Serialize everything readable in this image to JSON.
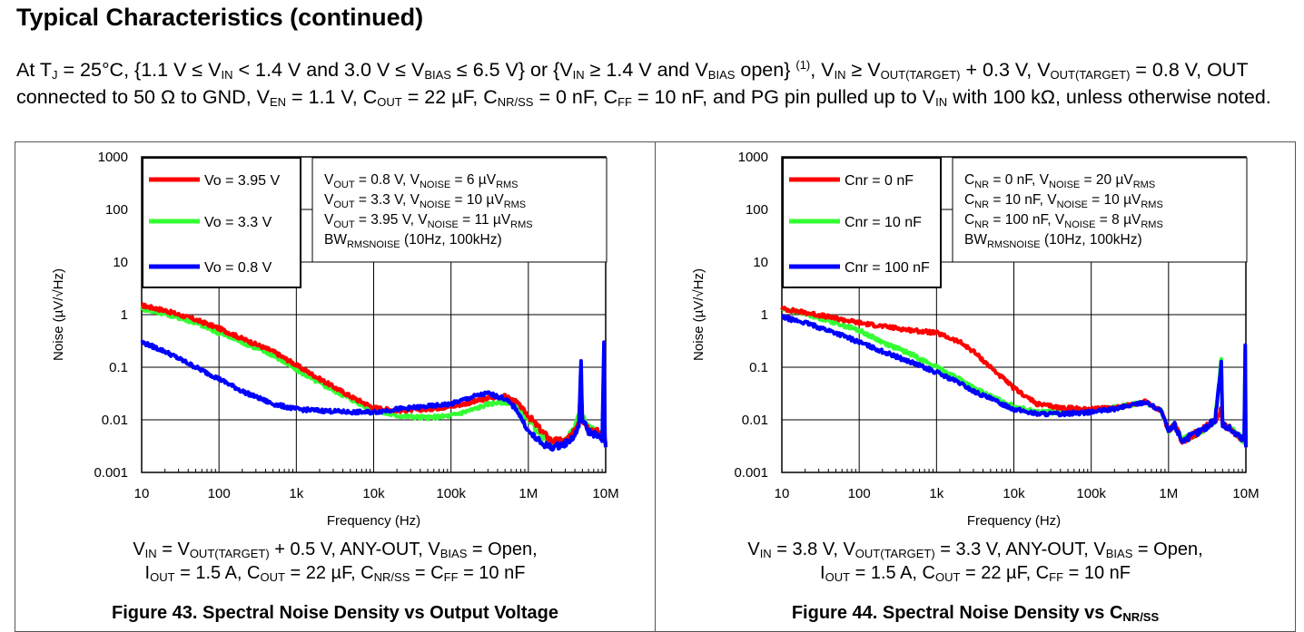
{
  "page": {
    "title": "Typical Characteristics (continued)",
    "conditions": {
      "p0": "At T",
      "s0": "J",
      "p1": " = 25°C, {1.1 V ≤ V",
      "s1": "IN",
      "p2": " < 1.4 V and 3.0 V ≤ V",
      "s2": "BIAS",
      "p3": " ≤ 6.5 V} or {V",
      "s3": "IN",
      "p4": " ≥ 1.4 V and V",
      "s4": "BIAS",
      "p5": " open} ",
      "sup5": "(1)",
      "p6": ", V",
      "s6": "IN",
      "p7": " ≥ V",
      "s7": "OUT(TARGET)",
      "p8": " + 0.3 V, V",
      "s8": "OUT(TARGET)",
      "p9": " = 0.8 V, OUT connected to 50 Ω to GND, V",
      "s9": "EN",
      "p10": " = 1.1 V, C",
      "s10": "OUT",
      "p11": " = 22 µF, C",
      "s11": "NR/SS",
      "p12": " = 0 nF, C",
      "s12": "FF",
      "p13": " = 10 nF, and PG pin pulled up to V",
      "s13": "IN",
      "p14": " with 100 kΩ, unless otherwise noted."
    }
  },
  "colors": {
    "red": "#ff0000",
    "green": "#33ff33",
    "blue": "#0000ff",
    "grid": "#000000"
  },
  "figures": [
    {
      "caption": {
        "l1a": "V",
        "l1s1": "IN",
        "l1b": " = V",
        "l1s2": "OUT(TARGET)",
        "l1c": " + 0.5 V, ANY-OUT, V",
        "l1s3": "BIAS",
        "l1d": " = Open,",
        "l2a": "I",
        "l2s1": "OUT",
        "l2b": " = 1.5 A, C",
        "l2s2": "OUT",
        "l2c": " = 22 µF, C",
        "l2s3": "NR/SS",
        "l2d": " = C",
        "l2s4": "FF",
        "l2e": " = 10 nF"
      },
      "fig_title": {
        "a": "Figure 43. Spectral Noise Density vs Output Voltage",
        "s": "",
        "b": ""
      },
      "legend": [
        "Vo = 3.95 V",
        "Vo = 3.3 V",
        "Vo = 0.8 V"
      ],
      "annotation": [
        {
          "a": "V",
          "s1": "OUT",
          "b": " = 0.8 V, V",
          "s2": "NOISE",
          "c": " = 6 µV",
          "s3": "RMS"
        },
        {
          "a": "V",
          "s1": "OUT",
          "b": " = 3.3 V, V",
          "s2": "NOISE",
          "c": " = 10 µV",
          "s3": "RMS"
        },
        {
          "a": "V",
          "s1": "OUT",
          "b": " = 3.95 V, V",
          "s2": "NOISE",
          "c": " = 11 µV",
          "s3": "RMS"
        },
        {
          "a": "BW",
          "s1": "RMSNOISE",
          "b": " (10Hz, 100kHz)",
          "s2": "",
          "c": "",
          "s3": ""
        }
      ]
    },
    {
      "caption": {
        "l1a": "V",
        "l1s1": "IN",
        "l1b": " = 3.8 V, V",
        "l1s2": "OUT(TARGET)",
        "l1c": " = 3.3 V, ANY-OUT, V",
        "l1s3": "BIAS",
        "l1d": " = Open,",
        "l2a": "I",
        "l2s1": "OUT",
        "l2b": " = 1.5 A, C",
        "l2s2": "OUT",
        "l2c": " = 22 µF, C",
        "l2s3": "FF",
        "l2d": " = 10 nF",
        "l2s4": "",
        "l2e": ""
      },
      "fig_title": {
        "a": "Figure 44. Spectral Noise Density vs C",
        "s": "NR/SS",
        "b": ""
      },
      "legend": [
        "Cnr = 0 nF",
        "Cnr = 10 nF",
        "Cnr = 100 nF"
      ],
      "annotation": [
        {
          "a": "C",
          "s1": "NR",
          "b": " = 0 nF, V",
          "s2": "NOISE",
          "c": " = 20 µV",
          "s3": "RMS"
        },
        {
          "a": "C",
          "s1": "NR",
          "b": " = 10 nF, V",
          "s2": "NOISE",
          "c": " = 10 µV",
          "s3": "RMS"
        },
        {
          "a": "C",
          "s1": "NR",
          "b": " = 100 nF, V",
          "s2": "NOISE",
          "c": " = 8 µV",
          "s3": "RMS"
        },
        {
          "a": "BW",
          "s1": "RMSNOISE",
          "b": " (10Hz, 100kHz)",
          "s2": "",
          "c": "",
          "s3": ""
        }
      ]
    }
  ],
  "chart_data": [
    {
      "type": "line",
      "xlabel": "Frequency (Hz)",
      "ylabel": "Noise (µV/√Hz)",
      "xscale": "log",
      "yscale": "log",
      "xlim": [
        10,
        10000000
      ],
      "ylim": [
        0.001,
        1000
      ],
      "xticks": [
        10,
        100,
        1000,
        10000,
        100000,
        1000000,
        10000000
      ],
      "xtick_labels": [
        "10",
        "100",
        "1k",
        "10k",
        "100k",
        "1M",
        "10M"
      ],
      "yticks": [
        0.001,
        0.01,
        0.1,
        1,
        10,
        100,
        1000
      ],
      "ytick_labels": [
        "0.001",
        "0.01",
        "0.1",
        "1",
        "10",
        "100",
        "1000"
      ],
      "grid": true,
      "legend_position": "top-left",
      "series": [
        {
          "name": "Vo = 3.95 V",
          "color": "red",
          "x": [
            10,
            20,
            50,
            100,
            200,
            500,
            1000,
            2000,
            5000,
            10000,
            20000,
            50000,
            100000,
            200000,
            300000,
            500000,
            700000,
            1000000,
            1500000,
            2000000,
            3000000,
            4000000,
            4500000,
            4800000,
            5000000,
            6000000,
            8000000,
            9000000,
            9500000,
            9800000,
            10000000
          ],
          "y": [
            1.5,
            1.2,
            0.8,
            0.55,
            0.35,
            0.2,
            0.11,
            0.06,
            0.028,
            0.017,
            0.015,
            0.016,
            0.018,
            0.022,
            0.026,
            0.028,
            0.022,
            0.012,
            0.006,
            0.004,
            0.004,
            0.006,
            0.01,
            0.05,
            0.01,
            0.007,
            0.006,
            0.005,
            0.015,
            0.005,
            0.003
          ]
        },
        {
          "name": "Vo = 3.3 V",
          "color": "green",
          "x": [
            10,
            20,
            50,
            100,
            200,
            500,
            1000,
            2000,
            5000,
            10000,
            20000,
            50000,
            100000,
            200000,
            300000,
            500000,
            700000,
            1000000,
            1500000,
            2000000,
            3000000,
            4000000,
            4500000,
            4800000,
            5000000,
            6000000,
            8000000,
            9000000,
            9500000,
            9800000,
            10000000
          ],
          "y": [
            1.3,
            1.05,
            0.7,
            0.45,
            0.3,
            0.17,
            0.09,
            0.05,
            0.025,
            0.015,
            0.012,
            0.011,
            0.012,
            0.016,
            0.02,
            0.022,
            0.018,
            0.01,
            0.005,
            0.0035,
            0.004,
            0.007,
            0.012,
            0.04,
            0.012,
            0.007,
            0.006,
            0.005,
            0.012,
            0.004,
            0.003
          ]
        },
        {
          "name": "Vo = 0.8 V",
          "color": "blue",
          "x": [
            10,
            20,
            50,
            100,
            200,
            500,
            1000,
            2000,
            5000,
            10000,
            20000,
            50000,
            100000,
            200000,
            300000,
            500000,
            700000,
            1000000,
            1500000,
            2000000,
            3000000,
            4000000,
            4500000,
            4800000,
            5000000,
            6000000,
            8000000,
            9000000,
            9500000,
            9800000,
            10000000
          ],
          "y": [
            0.3,
            0.2,
            0.1,
            0.06,
            0.035,
            0.02,
            0.016,
            0.015,
            0.014,
            0.014,
            0.016,
            0.018,
            0.02,
            0.028,
            0.032,
            0.025,
            0.016,
            0.006,
            0.0035,
            0.003,
            0.0035,
            0.005,
            0.008,
            0.12,
            0.01,
            0.006,
            0.005,
            0.004,
            0.3,
            0.004,
            0.003
          ]
        }
      ]
    },
    {
      "type": "line",
      "xlabel": "Frequency (Hz)",
      "ylabel": "Noise (µV/√Hz)",
      "xscale": "log",
      "yscale": "log",
      "xlim": [
        10,
        10000000
      ],
      "ylim": [
        0.001,
        1000
      ],
      "xticks": [
        10,
        100,
        1000,
        10000,
        100000,
        1000000,
        10000000
      ],
      "xtick_labels": [
        "10",
        "100",
        "1k",
        "10k",
        "100k",
        "1M",
        "10M"
      ],
      "yticks": [
        0.001,
        0.01,
        0.1,
        1,
        10,
        100,
        1000
      ],
      "ytick_labels": [
        "0.001",
        "0.01",
        "0.1",
        "1",
        "10",
        "100",
        "1000"
      ],
      "grid": true,
      "legend_position": "top-left",
      "series": [
        {
          "name": "Cnr = 0 nF",
          "color": "red",
          "x": [
            10,
            20,
            50,
            100,
            200,
            500,
            1000,
            2000,
            3000,
            5000,
            10000,
            20000,
            40000,
            100000,
            200000,
            500000,
            800000,
            1000000,
            1200000,
            1500000,
            2000000,
            3000000,
            4000000,
            4800000,
            5000000,
            6000000,
            8000000,
            9500000,
            9800000,
            10000000
          ],
          "y": [
            1.3,
            1.1,
            0.85,
            0.7,
            0.6,
            0.5,
            0.45,
            0.3,
            0.2,
            0.1,
            0.04,
            0.02,
            0.017,
            0.016,
            0.017,
            0.022,
            0.015,
            0.006,
            0.008,
            0.004,
            0.005,
            0.007,
            0.01,
            0.015,
            0.008,
            0.007,
            0.005,
            0.004,
            0.015,
            0.003
          ]
        },
        {
          "name": "Cnr = 10 nF",
          "color": "green",
          "x": [
            10,
            20,
            50,
            100,
            200,
            500,
            1000,
            2000,
            3000,
            5000,
            10000,
            20000,
            40000,
            100000,
            200000,
            500000,
            800000,
            1000000,
            1200000,
            1500000,
            2000000,
            3000000,
            4000000,
            4800000,
            5000000,
            6000000,
            8000000,
            9500000,
            9800000,
            10000000
          ],
          "y": [
            1.3,
            1.05,
            0.7,
            0.5,
            0.3,
            0.17,
            0.1,
            0.06,
            0.04,
            0.028,
            0.018,
            0.014,
            0.014,
            0.015,
            0.017,
            0.022,
            0.015,
            0.006,
            0.008,
            0.004,
            0.005,
            0.007,
            0.01,
            0.15,
            0.008,
            0.007,
            0.005,
            0.004,
            0.2,
            0.003
          ]
        },
        {
          "name": "Cnr = 100 nF",
          "color": "blue",
          "x": [
            10,
            20,
            50,
            100,
            200,
            500,
            1000,
            2000,
            3000,
            5000,
            10000,
            20000,
            40000,
            100000,
            200000,
            500000,
            800000,
            1000000,
            1200000,
            1500000,
            2000000,
            3000000,
            4000000,
            4800000,
            5000000,
            6000000,
            8000000,
            9500000,
            9800000,
            10000000
          ],
          "y": [
            0.9,
            0.7,
            0.45,
            0.3,
            0.2,
            0.12,
            0.08,
            0.05,
            0.035,
            0.025,
            0.016,
            0.013,
            0.013,
            0.014,
            0.016,
            0.022,
            0.015,
            0.006,
            0.008,
            0.004,
            0.005,
            0.007,
            0.01,
            0.12,
            0.008,
            0.007,
            0.005,
            0.004,
            0.25,
            0.003
          ]
        }
      ]
    }
  ]
}
